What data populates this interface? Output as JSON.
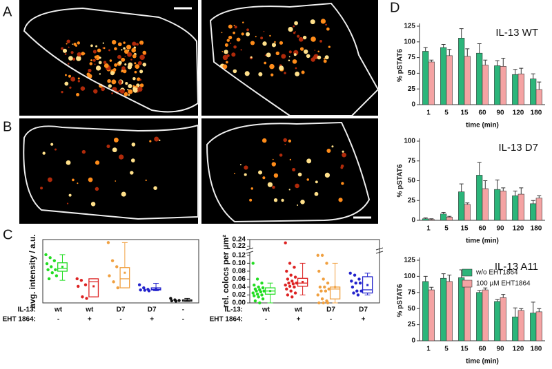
{
  "panel_labels": [
    "A",
    "B",
    "C",
    "D"
  ],
  "chart_data": [
    {
      "type": "bar",
      "title": "IL-13 WT",
      "ylabel": "% pSTAT6",
      "xlabel": "time (min)",
      "categories": [
        "1",
        "5",
        "15",
        "60",
        "90",
        "120",
        "180"
      ],
      "ylim": [
        0,
        125
      ],
      "yticks": [
        0,
        25,
        50,
        75,
        100,
        125
      ],
      "series": [
        {
          "name": "w/o EHT1864",
          "color": "#2bb57a",
          "values": [
            85,
            91,
            106,
            82,
            62,
            48,
            41
          ],
          "errors": [
            6,
            5,
            15,
            15,
            8,
            8,
            8
          ]
        },
        {
          "name": "100 µM EHT1864",
          "color": "#f4a3a3",
          "values": [
            68,
            78,
            77,
            63,
            61,
            49,
            24
          ],
          "errors": [
            3,
            10,
            12,
            8,
            13,
            9,
            12
          ]
        }
      ]
    },
    {
      "type": "bar",
      "title": "IL-13 D7",
      "ylabel": "% pSTAT6",
      "xlabel": "time (min)",
      "categories": [
        "1",
        "5",
        "15",
        "60",
        "90",
        "120",
        "180"
      ],
      "ylim": [
        0,
        100
      ],
      "yticks": [
        0,
        25,
        50,
        75,
        100
      ],
      "series": [
        {
          "name": "w/o EHT1864",
          "color": "#2bb57a",
          "values": [
            2,
            8,
            36,
            57,
            39,
            31,
            21
          ],
          "errors": [
            1,
            2,
            10,
            16,
            12,
            6,
            4
          ]
        },
        {
          "name": "100 µM EHT1864",
          "color": "#f4a3a3",
          "values": [
            1,
            4,
            20,
            40,
            37,
            33,
            28
          ],
          "errors": [
            1,
            1,
            2,
            10,
            4,
            8,
            3
          ]
        }
      ]
    },
    {
      "type": "bar",
      "title": "IL-13 A11",
      "ylabel": "% pSTAT6",
      "xlabel": "time (min)",
      "categories": [
        "1",
        "5",
        "15",
        "60",
        "90",
        "120",
        "180"
      ],
      "ylim": [
        0,
        125
      ],
      "yticks": [
        0,
        25,
        50,
        75,
        100,
        125
      ],
      "legend": "upper right",
      "series": [
        {
          "name": "w/o EHT1864",
          "color": "#2bb57a",
          "values": [
            92,
            97,
            98,
            75,
            61,
            37,
            43
          ],
          "errors": [
            8,
            7,
            12,
            3,
            3,
            14,
            17
          ]
        },
        {
          "name": "100 µM EHT1864",
          "color": "#f4a3a3",
          "values": [
            79,
            92,
            87,
            79,
            67,
            47,
            45
          ],
          "errors": [
            4,
            10,
            5,
            3,
            5,
            3,
            5
          ]
        }
      ]
    },
    {
      "type": "box",
      "ylabel": "avg. intensity / a.u.",
      "ylim": [
        0,
        21
      ],
      "row_labels": [
        "IL-13:",
        "EHT 1864:"
      ],
      "categories": [
        [
          "wt",
          "-"
        ],
        [
          "wt",
          "+"
        ],
        [
          "D7",
          "-"
        ],
        [
          "D7",
          "+"
        ],
        [
          "-",
          "-"
        ]
      ],
      "boxes": [
        {
          "color": "#22dd22",
          "min": 7.5,
          "q1": 10.5,
          "median": 11.5,
          "q3": 13.3,
          "max": 16,
          "mean": 12,
          "points": [
            16,
            15,
            14,
            13,
            12,
            11,
            11,
            10,
            9,
            8
          ]
        },
        {
          "color": "#dd2222",
          "min": 2,
          "q1": 2,
          "median": 7,
          "q3": 8,
          "max": 8,
          "mean": 5.5,
          "points": [
            8,
            7.5,
            6,
            5.5,
            2,
            1.5
          ]
        },
        {
          "color": "#f0a040",
          "min": 5,
          "q1": 5,
          "median": 8,
          "q3": 11.7,
          "max": 20,
          "mean": 10,
          "points": [
            20,
            14,
            12,
            9,
            7,
            5
          ]
        },
        {
          "color": "#2222cc",
          "min": 4,
          "q1": 4.3,
          "median": 4.5,
          "q3": 5,
          "max": 6.5,
          "mean": 4.7,
          "points": [
            6,
            5,
            4.5,
            4.3,
            4.2,
            4
          ]
        },
        {
          "color": "#111111",
          "min": 0.5,
          "q1": 0.6,
          "median": 0.7,
          "q3": 1,
          "max": 1.5,
          "mean": 0.8,
          "points": [
            1.5,
            1,
            0.8,
            0.7,
            0.6
          ]
        }
      ]
    },
    {
      "type": "box",
      "ylabel": "rel. colocs per µm²",
      "ylim": [
        0,
        0.125
      ],
      "yticks": [
        {
          "value": 0,
          "label": "0.00"
        },
        0.02,
        0.04,
        0.06,
        0.08,
        {
          "value": 0.1,
          "label": "0.10"
        },
        0.12
      ],
      "ybreak": {
        "ylim": [
          0.215,
          0.24
        ],
        "yticks": [
          0.22,
          0.24
        ]
      },
      "row_labels": [
        "IL-13:",
        "EHT 1864:"
      ],
      "categories": [
        [
          "wt",
          "-"
        ],
        [
          "wt",
          "+"
        ],
        [
          "D7",
          "-"
        ],
        [
          "D7",
          "+"
        ]
      ],
      "boxes": [
        {
          "color": "#22dd22",
          "min": 0,
          "q1": 0.022,
          "median": 0.03,
          "q3": 0.038,
          "max": 0.05,
          "mean": 0.03,
          "points": [
            0.1,
            0.06,
            0.05,
            0.045,
            0.04,
            0.038,
            0.035,
            0.033,
            0.03,
            0.03,
            0.028,
            0.025,
            0.022,
            0.02,
            0.018,
            0.015,
            0.01,
            0.005,
            0
          ]
        },
        {
          "color": "#dd2222",
          "min": 0.02,
          "q1": 0.042,
          "median": 0.05,
          "q3": 0.062,
          "max": 0.1,
          "mean": 0.053,
          "points": [
            0.23,
            0.1,
            0.09,
            0.08,
            0.07,
            0.065,
            0.06,
            0.055,
            0.05,
            0.05,
            0.048,
            0.045,
            0.042,
            0.04,
            0.035,
            0.03,
            0.025,
            0.02,
            0.015
          ]
        },
        {
          "color": "#f0a040",
          "min": 0,
          "q1": 0.01,
          "median": 0.035,
          "q3": 0.04,
          "max": 0.1,
          "mean": 0.04,
          "points": [
            0.12,
            0.12,
            0.1,
            0.08,
            0.06,
            0.05,
            0.04,
            0.04,
            0.035,
            0.03,
            0.03,
            0.02,
            0.01,
            0.005,
            0,
            0,
            0
          ]
        },
        {
          "color": "#2222cc",
          "min": 0.02,
          "q1": 0.025,
          "median": 0.033,
          "q3": 0.066,
          "max": 0.075,
          "mean": 0.045,
          "points": [
            0.075,
            0.07,
            0.06,
            0.055,
            0.05,
            0.05,
            0.04,
            0.03,
            0.03,
            0.025,
            0.02
          ]
        }
      ]
    }
  ]
}
